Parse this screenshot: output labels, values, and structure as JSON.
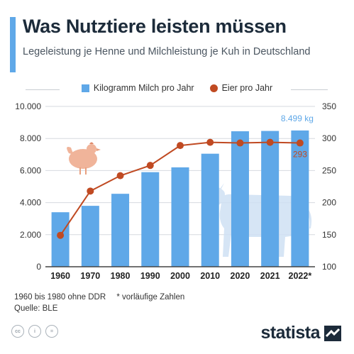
{
  "header": {
    "title": "Was Nutztiere leisten müssen",
    "subtitle": "Legeleistung je Henne und Milchleistung je Kuh in Deutschland"
  },
  "legend": {
    "bars_label": "Kilogramm Milch pro Jahr",
    "line_label": "Eier pro Jahr"
  },
  "colors": {
    "accent": "#5fa8e8",
    "bars": "#5fa8e8",
    "line": "#c04a22",
    "text": "#1c2b3a"
  },
  "chart_data": {
    "type": "bar",
    "categories": [
      "1960",
      "1970",
      "1980",
      "1990",
      "2000",
      "2010",
      "2020",
      "2021",
      "2022*"
    ],
    "series": [
      {
        "name": "Kilogramm Milch pro Jahr",
        "type": "bar",
        "axis": "left",
        "values": [
          3400,
          3800,
          4550,
          5900,
          6200,
          7050,
          8450,
          8470,
          8499
        ]
      },
      {
        "name": "Eier pro Jahr",
        "type": "line",
        "axis": "right",
        "values": [
          149,
          218,
          242,
          258,
          289,
          294,
          293,
          294,
          293
        ]
      }
    ],
    "y_left": {
      "min": 0,
      "max": 10000,
      "ticks": [
        0,
        2000,
        4000,
        6000,
        8000,
        10000
      ],
      "tick_labels": [
        "0",
        "2.000",
        "4.000",
        "6.000",
        "8.000",
        "10.000"
      ]
    },
    "y_right": {
      "min": 100,
      "max": 350,
      "ticks": [
        100,
        150,
        200,
        250,
        300,
        350
      ],
      "tick_labels": [
        "100",
        "150",
        "200",
        "250",
        "300",
        "350"
      ]
    },
    "annotations": {
      "bar_last_label": "8.499 kg",
      "line_last_label": "293"
    },
    "grid": true,
    "legend_position": "top"
  },
  "footnote": {
    "note1": "1960 bis 1980 ohne DDR",
    "note2": "* vorläufige Zahlen",
    "source": "Quelle: BLE"
  },
  "icons": {
    "license": [
      "cc-icon",
      "person-icon",
      "equals-icon"
    ],
    "license_glyphs": [
      "cc",
      "i",
      "="
    ],
    "chicken": "chicken-icon",
    "cow": "cow-icon"
  },
  "brand": {
    "name": "statista"
  }
}
